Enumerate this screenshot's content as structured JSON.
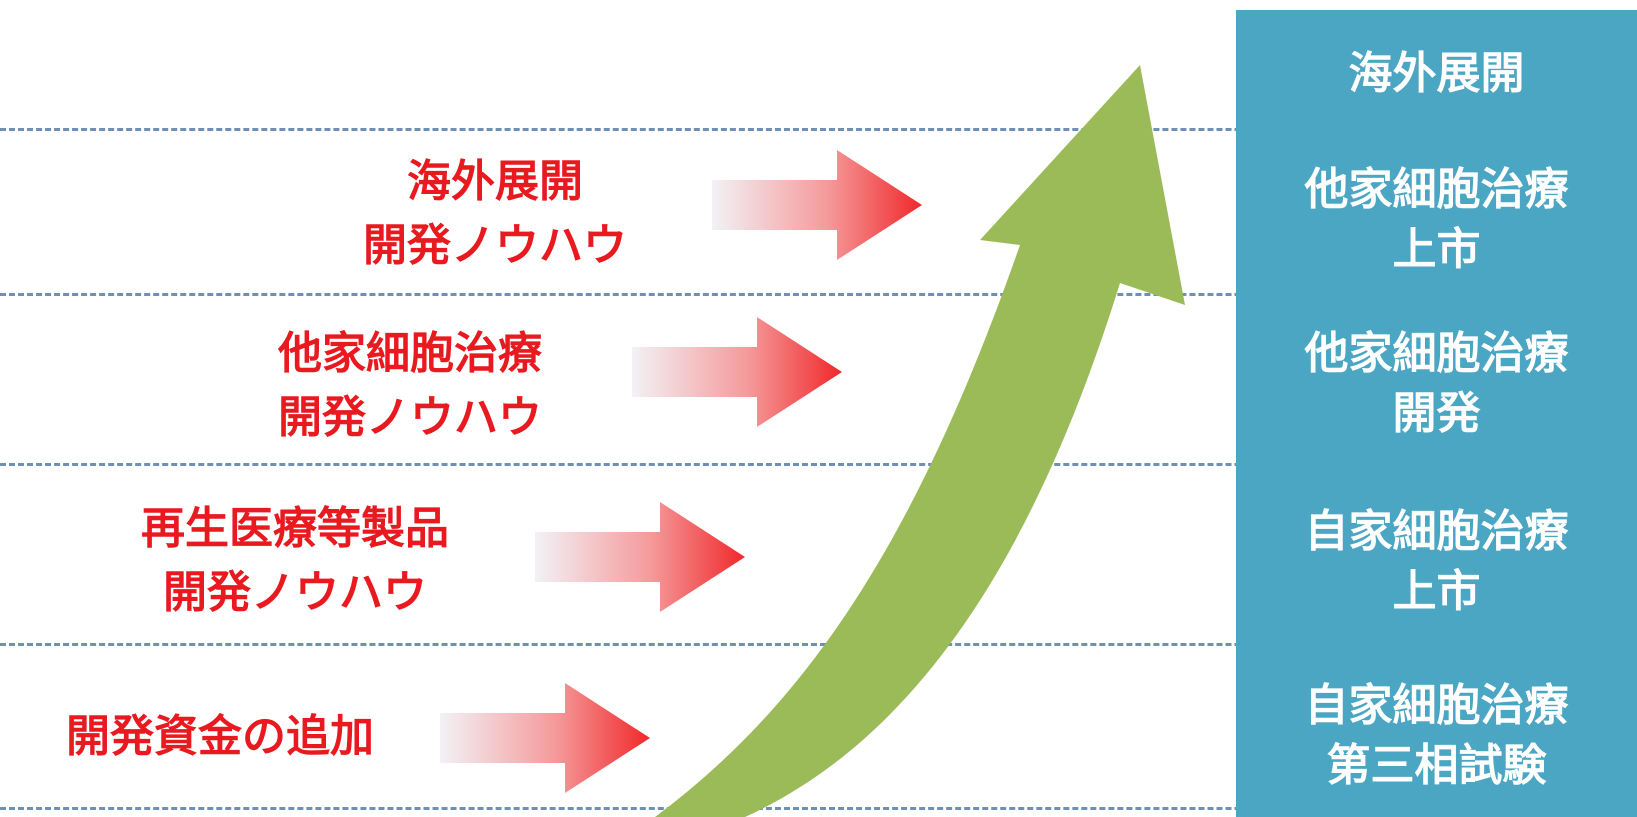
{
  "stages": [
    {
      "id": "overseas",
      "text": "海外展開"
    },
    {
      "id": "allogeneic-launch",
      "text": "他家細胞治療\n上市"
    },
    {
      "id": "allogeneic-dev",
      "text": "他家細胞治療\n開発"
    },
    {
      "id": "autologous-launch",
      "text": "自家細胞治療\n上市"
    },
    {
      "id": "autologous-p3",
      "text": "自家細胞治療\n第三相試験"
    }
  ],
  "inputs": [
    {
      "id": "overseas-knowhow",
      "text": "海外展開\n開発ノウハウ"
    },
    {
      "id": "allogeneic-knowhow",
      "text": "他家細胞治療\n開発ノウハウ"
    },
    {
      "id": "regen-knowhow",
      "text": "再生医療等製品\n開発ノウハウ"
    },
    {
      "id": "funding",
      "text": "開発資金の追加"
    }
  ],
  "colors": {
    "input_text": "#e8191f",
    "arrow_red": "#f0282a",
    "growth_arrow": "#9bbb59",
    "panel": "#4aa6c2",
    "dash_line": "#6f8fb5"
  }
}
